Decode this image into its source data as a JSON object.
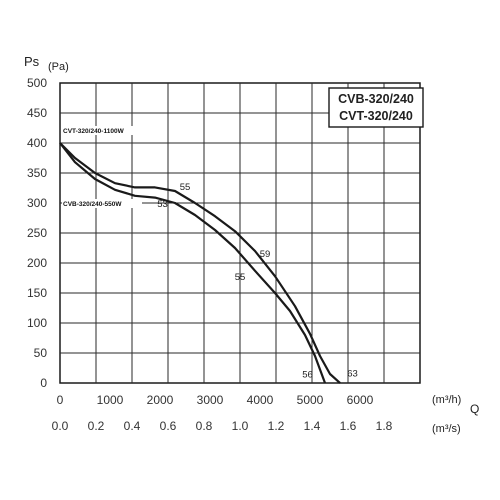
{
  "chart_data": {
    "type": "line",
    "title_lines": [
      "CVB-320/240",
      "CVT-320/240"
    ],
    "ylabel": "Ps",
    "yunit": "(Pa)",
    "xlabel": "Q",
    "xunit_top": "(m³/h)",
    "xunit_bottom": "(m³/s)",
    "ylim": [
      0,
      500
    ],
    "y_ticks": [
      "0",
      "50",
      "100",
      "150",
      "200",
      "250",
      "300",
      "350",
      "400",
      "450",
      "500"
    ],
    "xlim": [
      0,
      7200
    ],
    "x_ticks_top": [
      "0",
      "1000",
      "2000",
      "3000",
      "4000",
      "5000",
      "6000"
    ],
    "x_ticks_bottom": [
      "0.0",
      "0.2",
      "0.4",
      "0.6",
      "0.8",
      "1.0",
      "1.2",
      "1.4",
      "1.6",
      "1.8"
    ],
    "grid": true,
    "series": [
      {
        "name": "CVT-320/240-1100W",
        "x": [
          0,
          300,
          700,
          1100,
          1500,
          1900,
          2300,
          2700,
          3100,
          3500,
          3900,
          4300,
          4700,
          5000,
          5200,
          5400,
          5600
        ],
        "y": [
          400,
          375,
          350,
          333,
          326,
          326,
          320,
          300,
          278,
          253,
          220,
          178,
          128,
          82,
          45,
          15,
          0
        ],
        "color": "#1a1a1a"
      },
      {
        "name": "CVB-320/240-550W",
        "x": [
          0,
          300,
          700,
          1100,
          1500,
          1900,
          2300,
          2700,
          3100,
          3500,
          3900,
          4300,
          4600,
          4900,
          5100,
          5300
        ],
        "y": [
          400,
          368,
          340,
          322,
          312,
          309,
          300,
          280,
          255,
          225,
          187,
          150,
          120,
          80,
          45,
          0
        ],
        "color": "#1a1a1a"
      }
    ],
    "annotations": [
      {
        "text": "55",
        "x": 2500,
        "y": 322
      },
      {
        "text": "53",
        "x": 2050,
        "y": 293
      },
      {
        "text": "59",
        "x": 4100,
        "y": 210
      },
      {
        "text": "55",
        "x": 3600,
        "y": 172
      },
      {
        "text": "56",
        "x": 4950,
        "y": 9
      },
      {
        "text": "63",
        "x": 5850,
        "y": 11
      }
    ],
    "colors": {
      "grid": "#2a2a2a",
      "line": "#1a1a1a",
      "axis": "#1a1a1a"
    }
  }
}
